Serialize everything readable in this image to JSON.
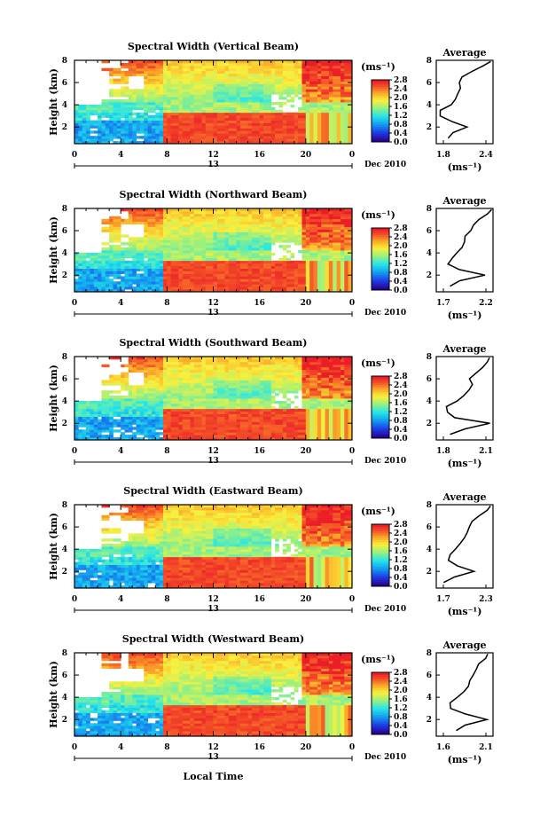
{
  "figure": {
    "x_common_label": "Local Time",
    "date_label": "Dec 2010",
    "day_label": "13",
    "cbar_unit": "(ms⁻¹)",
    "avg_title": "Average",
    "avg_unit": "(ms⁻¹)"
  },
  "chart_data": [
    {
      "type": "heatmap",
      "title": "Spectral Width (Vertical Beam)",
      "xlabel": "",
      "ylabel": "Height (km)",
      "xticks": [
        "0",
        "4",
        "8",
        "12",
        "16",
        "20",
        "0"
      ],
      "yticks": [
        "2",
        "4",
        "6",
        "8"
      ],
      "xlim": [
        0,
        24
      ],
      "ylim": [
        0.5,
        8
      ],
      "cbar_ticks": [
        "0.0",
        "0.4",
        "0.8",
        "1.2",
        "1.6",
        "2.0",
        "2.4",
        "2.8"
      ],
      "cbar_range": [
        0,
        2.8
      ],
      "profile": {
        "title": "Average",
        "xticks": [
          "1.8",
          "2.4"
        ],
        "xlim": [
          1.8,
          2.4
        ],
        "yticks": [
          "2",
          "4",
          "6",
          "8"
        ],
        "height_km": [
          1.0,
          1.5,
          2.0,
          2.5,
          3.0,
          3.5,
          4.0,
          4.5,
          5.0,
          5.5,
          6.0,
          6.5,
          7.0,
          7.5,
          7.9
        ],
        "width": [
          1.92,
          1.98,
          2.12,
          1.97,
          1.85,
          1.84,
          1.95,
          2.0,
          2.02,
          2.05,
          2.05,
          2.08,
          2.18,
          2.3,
          2.38
        ]
      }
    },
    {
      "type": "heatmap",
      "title": "Spectral Width (Northward Beam)",
      "xlabel": "",
      "ylabel": "Height (km)",
      "xticks": [
        "0",
        "4",
        "8",
        "12",
        "16",
        "20",
        "0"
      ],
      "yticks": [
        "2",
        "4",
        "6",
        "8"
      ],
      "xlim": [
        0,
        24
      ],
      "ylim": [
        0.5,
        8
      ],
      "cbar_ticks": [
        "0.0",
        "0.4",
        "0.8",
        "1.2",
        "1.6",
        "2.0",
        "2.4",
        "2.8"
      ],
      "cbar_range": [
        0,
        2.8
      ],
      "profile": {
        "title": "Average",
        "xticks": [
          "1.7",
          "2.2"
        ],
        "xlim": [
          1.7,
          2.2
        ],
        "yticks": [
          "2",
          "4",
          "6",
          "8"
        ],
        "height_km": [
          1.0,
          1.5,
          2.0,
          2.5,
          3.0,
          3.5,
          4.0,
          4.5,
          5.0,
          5.5,
          6.0,
          6.5,
          7.0,
          7.5,
          7.9
        ],
        "width": [
          1.82,
          1.9,
          2.13,
          1.9,
          1.8,
          1.84,
          1.88,
          1.92,
          1.95,
          1.96,
          2.0,
          2.03,
          2.08,
          2.15,
          2.18
        ]
      }
    },
    {
      "type": "heatmap",
      "title": "Spectral Width (Southward Beam)",
      "xlabel": "",
      "ylabel": "Height (km)",
      "xticks": [
        "0",
        "4",
        "8",
        "12",
        "16",
        "20",
        "0"
      ],
      "yticks": [
        "2",
        "4",
        "6",
        "8"
      ],
      "xlim": [
        0,
        24
      ],
      "ylim": [
        0.5,
        8
      ],
      "cbar_ticks": [
        "0.0",
        "0.4",
        "0.8",
        "1.2",
        "1.6",
        "2.0",
        "2.4",
        "2.8"
      ],
      "cbar_range": [
        0,
        2.8
      ],
      "profile": {
        "title": "Average",
        "xticks": [
          "1.8",
          "2.1"
        ],
        "xlim": [
          1.8,
          2.1
        ],
        "yticks": [
          "2",
          "4",
          "6",
          "8"
        ],
        "height_km": [
          1.0,
          1.5,
          2.0,
          2.5,
          3.0,
          3.5,
          4.0,
          4.5,
          5.0,
          5.5,
          6.0,
          6.5,
          7.0,
          7.5,
          7.9
        ],
        "width": [
          1.87,
          1.95,
          2.08,
          1.9,
          1.86,
          1.85,
          1.91,
          1.95,
          1.97,
          1.99,
          1.98,
          2.01,
          2.04,
          2.07,
          2.08
        ]
      }
    },
    {
      "type": "heatmap",
      "title": "Spectral Width (Eastward Beam)",
      "xlabel": "",
      "ylabel": "Height (km)",
      "xticks": [
        "0",
        "4",
        "8",
        "12",
        "16",
        "20",
        "0"
      ],
      "yticks": [
        "2",
        "4",
        "6",
        "8"
      ],
      "xlim": [
        0,
        24
      ],
      "ylim": [
        0.5,
        8
      ],
      "cbar_ticks": [
        "0.0",
        "0.4",
        "0.8",
        "1.2",
        "1.6",
        "2.0",
        "2.4",
        "2.8"
      ],
      "cbar_range": [
        0,
        2.8
      ],
      "profile": {
        "title": "Average",
        "xticks": [
          "1.7",
          "2.3"
        ],
        "xlim": [
          1.7,
          2.3
        ],
        "yticks": [
          "2",
          "4",
          "6",
          "8"
        ],
        "height_km": [
          1.0,
          1.5,
          2.0,
          2.5,
          3.0,
          3.5,
          4.0,
          4.5,
          5.0,
          5.5,
          6.0,
          6.5,
          7.0,
          7.5,
          7.9
        ],
        "width": [
          1.78,
          1.9,
          2.1,
          1.92,
          1.82,
          1.84,
          1.9,
          1.96,
          2.0,
          2.02,
          2.05,
          2.08,
          2.15,
          2.24,
          2.28
        ]
      }
    },
    {
      "type": "heatmap",
      "title": "Spectral Width (Westward Beam)",
      "xlabel": "Local Time",
      "ylabel": "Height (km)",
      "xticks": [
        "0",
        "4",
        "8",
        "12",
        "16",
        "20",
        "0"
      ],
      "yticks": [
        "2",
        "4",
        "6",
        "8"
      ],
      "xlim": [
        0,
        24
      ],
      "ylim": [
        0.5,
        8
      ],
      "cbar_ticks": [
        "0.0",
        "0.4",
        "0.8",
        "1.2",
        "1.6",
        "2.0",
        "2.4",
        "2.8"
      ],
      "cbar_range": [
        0,
        2.8
      ],
      "profile": {
        "title": "Average",
        "xticks": [
          "1.6",
          "2.1"
        ],
        "xlim": [
          1.6,
          2.1
        ],
        "yticks": [
          "2",
          "4",
          "6",
          "8"
        ],
        "height_km": [
          1.0,
          1.5,
          2.0,
          2.5,
          3.0,
          3.5,
          4.0,
          4.5,
          5.0,
          5.5,
          6.0,
          6.5,
          7.0,
          7.5,
          7.9
        ],
        "width": [
          1.78,
          1.86,
          2.05,
          1.85,
          1.73,
          1.72,
          1.78,
          1.85,
          1.88,
          1.9,
          1.92,
          1.95,
          1.98,
          2.03,
          2.06
        ]
      }
    }
  ]
}
